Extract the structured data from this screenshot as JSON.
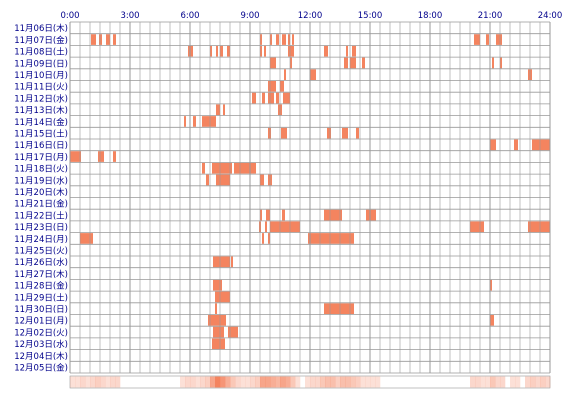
{
  "chart_data": {
    "type": "timeline",
    "x_unit": "hour",
    "xlim": [
      0,
      24
    ],
    "x_tick_labels": [
      "0:00",
      "3:00",
      "6:00",
      "9:00",
      "12:00",
      "15:00",
      "18:00",
      "21:00",
      "24:00"
    ],
    "x_ticks": [
      0,
      3,
      6,
      9,
      12,
      15,
      18,
      21,
      24
    ],
    "grid": true,
    "summary_strip": true,
    "colors": {
      "activity": "#f4845f",
      "grid": "#999999",
      "label": "#00008b",
      "strip": "#fcd6c4"
    },
    "rows": [
      {
        "label": "11月06日(木)",
        "intervals": []
      },
      {
        "label": "11月07日(金)",
        "intervals": [
          [
            1.05,
            1.3
          ],
          [
            1.45,
            1.6
          ],
          [
            1.8,
            2.0
          ],
          [
            2.15,
            2.3
          ],
          [
            9.5,
            9.6
          ],
          [
            10.0,
            10.1
          ],
          [
            10.3,
            10.45
          ],
          [
            10.6,
            10.8
          ],
          [
            10.9,
            11.0
          ],
          [
            11.1,
            11.2
          ],
          [
            20.2,
            20.5
          ],
          [
            20.8,
            20.95
          ],
          [
            21.3,
            21.6
          ]
        ]
      },
      {
        "label": "11月08日(土)",
        "intervals": [
          [
            5.9,
            6.15
          ],
          [
            7.0,
            7.1
          ],
          [
            7.3,
            7.4
          ],
          [
            7.5,
            7.65
          ],
          [
            7.85,
            8.0
          ],
          [
            9.5,
            9.6
          ],
          [
            9.7,
            9.8
          ],
          [
            10.9,
            11.2
          ],
          [
            12.7,
            12.9
          ],
          [
            13.8,
            13.9
          ],
          [
            14.1,
            14.3
          ]
        ]
      },
      {
        "label": "11月09日(日)",
        "intervals": [
          [
            10.0,
            10.3
          ],
          [
            11.0,
            11.1
          ],
          [
            13.7,
            13.9
          ],
          [
            14.0,
            14.3
          ],
          [
            14.6,
            14.75
          ],
          [
            21.1,
            21.2
          ],
          [
            21.5,
            21.6
          ]
        ]
      },
      {
        "label": "11月10日(月)",
        "intervals": [
          [
            10.7,
            10.8
          ],
          [
            12.0,
            12.3
          ],
          [
            22.9,
            23.1
          ]
        ]
      },
      {
        "label": "11月11日(火)",
        "intervals": [
          [
            9.9,
            10.3
          ],
          [
            10.5,
            10.7
          ]
        ]
      },
      {
        "label": "11月12日(水)",
        "intervals": [
          [
            9.1,
            9.3
          ],
          [
            9.6,
            9.75
          ],
          [
            9.9,
            10.2
          ],
          [
            10.3,
            10.45
          ],
          [
            10.65,
            11.0
          ]
        ]
      },
      {
        "label": "11月13日(木)",
        "intervals": [
          [
            7.3,
            7.5
          ],
          [
            7.65,
            7.75
          ],
          [
            10.4,
            10.6
          ]
        ]
      },
      {
        "label": "11月14日(金)",
        "intervals": [
          [
            5.7,
            5.8
          ],
          [
            6.15,
            6.3
          ],
          [
            6.6,
            7.3
          ]
        ]
      },
      {
        "label": "11月15日(土)",
        "intervals": [
          [
            9.9,
            10.05
          ],
          [
            10.55,
            10.85
          ],
          [
            12.85,
            13.05
          ],
          [
            13.6,
            13.9
          ],
          [
            14.3,
            14.45
          ]
        ]
      },
      {
        "label": "11月16日(日)",
        "intervals": [
          [
            21.0,
            21.3
          ],
          [
            22.2,
            22.4
          ],
          [
            23.1,
            24.0
          ]
        ]
      },
      {
        "label": "11月17日(月)",
        "intervals": [
          [
            0.0,
            0.55
          ],
          [
            1.4,
            1.7
          ],
          [
            2.15,
            2.3
          ]
        ]
      },
      {
        "label": "11月18日(火)",
        "intervals": [
          [
            6.6,
            6.75
          ],
          [
            7.1,
            8.1
          ],
          [
            8.2,
            9.3
          ]
        ]
      },
      {
        "label": "11月19日(水)",
        "intervals": [
          [
            6.8,
            6.95
          ],
          [
            7.3,
            8.0
          ],
          [
            9.5,
            9.7
          ],
          [
            9.9,
            10.1
          ]
        ]
      },
      {
        "label": "11月20日(木)",
        "intervals": []
      },
      {
        "label": "11月21日(金)",
        "intervals": []
      },
      {
        "label": "11月22日(土)",
        "intervals": [
          [
            9.5,
            9.6
          ],
          [
            9.8,
            10.0
          ],
          [
            10.6,
            10.75
          ],
          [
            12.7,
            13.6
          ],
          [
            14.8,
            15.3
          ]
        ]
      },
      {
        "label": "11月23日(日)",
        "intervals": [
          [
            9.45,
            9.55
          ],
          [
            9.75,
            9.85
          ],
          [
            10.0,
            11.5
          ],
          [
            20.0,
            20.7
          ],
          [
            22.9,
            23.6
          ],
          [
            23.6,
            24.0
          ]
        ]
      },
      {
        "label": "11月24日(月)",
        "intervals": [
          [
            0.5,
            1.15
          ],
          [
            9.6,
            9.7
          ],
          [
            9.9,
            10.0
          ],
          [
            11.9,
            13.2
          ],
          [
            13.2,
            14.2
          ]
        ]
      },
      {
        "label": "11月25日(火)",
        "intervals": []
      },
      {
        "label": "11月26日(水)",
        "intervals": [
          [
            7.15,
            8.0
          ],
          [
            8.05,
            8.15
          ]
        ]
      },
      {
        "label": "11月27日(木)",
        "intervals": []
      },
      {
        "label": "11月28日(金)",
        "intervals": [
          [
            7.15,
            7.6
          ],
          [
            21.0,
            21.1
          ]
        ]
      },
      {
        "label": "11月29日(土)",
        "intervals": [
          [
            7.25,
            8.0
          ]
        ]
      },
      {
        "label": "11月30日(日)",
        "intervals": [
          [
            7.25,
            7.35
          ],
          [
            12.7,
            14.2
          ]
        ]
      },
      {
        "label": "12月01日(月)",
        "intervals": [
          [
            6.9,
            7.8
          ],
          [
            21.0,
            21.2
          ]
        ]
      },
      {
        "label": "12月02日(火)",
        "intervals": [
          [
            7.15,
            7.7
          ],
          [
            7.9,
            8.4
          ]
        ]
      },
      {
        "label": "12月03日(水)",
        "intervals": [
          [
            7.1,
            7.75
          ]
        ]
      },
      {
        "label": "12月04日(木)",
        "intervals": []
      },
      {
        "label": "12月05日(金)",
        "intervals": []
      }
    ]
  }
}
